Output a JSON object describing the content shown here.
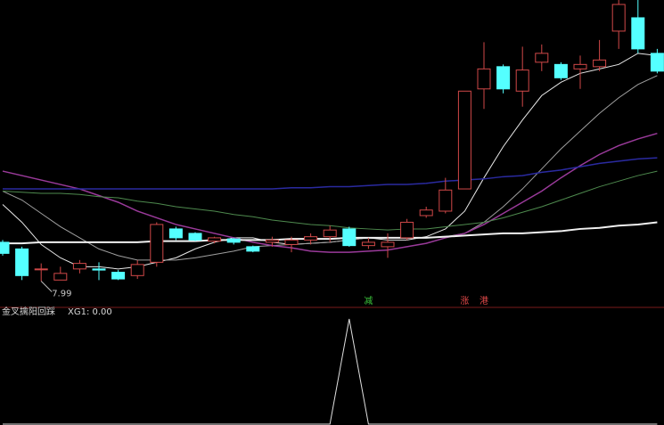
{
  "chart_data": [
    {
      "type": "candlestick",
      "up_color": "#d04848",
      "down_color": "#54ffff",
      "ylim": [
        7.77,
        10.52
      ],
      "open": [
        8.34,
        8.28,
        8.1,
        8.0,
        8.1,
        8.1,
        8.07,
        8.04,
        8.16,
        8.46,
        8.42,
        8.35,
        8.37,
        8.3,
        8.34,
        8.32,
        8.36,
        8.39,
        8.46,
        8.31,
        8.3,
        8.38,
        8.58,
        8.62,
        8.82,
        9.72,
        9.92,
        9.7,
        9.96,
        9.94,
        9.9,
        9.92,
        10.24,
        10.36,
        10.04
      ],
      "high": [
        8.36,
        8.3,
        8.15,
        8.12,
        8.18,
        8.16,
        8.09,
        8.18,
        8.52,
        8.48,
        8.43,
        8.39,
        8.38,
        8.31,
        8.39,
        8.39,
        8.42,
        8.49,
        8.48,
        8.38,
        8.42,
        8.55,
        8.66,
        8.92,
        9.7,
        10.14,
        9.94,
        10.1,
        10.12,
        9.96,
        10.02,
        10.16,
        10.52,
        10.52,
        10.08
      ],
      "low": [
        8.22,
        8.0,
        7.99,
        8.0,
        8.06,
        8.0,
        8.0,
        8.01,
        8.12,
        8.36,
        8.35,
        8.33,
        8.32,
        8.25,
        8.3,
        8.25,
        8.32,
        8.34,
        8.3,
        8.28,
        8.2,
        8.36,
        8.56,
        8.6,
        8.82,
        9.54,
        9.68,
        9.56,
        9.88,
        9.8,
        9.72,
        9.88,
        10.08,
        10.04,
        9.86
      ],
      "close": [
        8.24,
        8.04,
        8.1,
        8.06,
        8.15,
        8.09,
        8.01,
        8.14,
        8.5,
        8.38,
        8.36,
        8.38,
        8.34,
        8.26,
        8.36,
        8.36,
        8.39,
        8.45,
        8.31,
        8.34,
        8.34,
        8.52,
        8.63,
        8.81,
        9.7,
        9.9,
        9.72,
        9.89,
        10.04,
        9.82,
        9.94,
        9.98,
        10.48,
        10.08,
        9.88
      ],
      "series": [
        {
          "color": "#e8e8e8",
          "width": 1,
          "values": [
            8.68,
            8.52,
            8.32,
            8.2,
            8.12,
            8.12,
            8.1,
            8.12,
            8.16,
            8.2,
            8.28,
            8.34,
            8.38,
            8.38,
            8.34,
            8.32,
            8.33,
            8.34,
            8.36,
            8.38,
            8.36,
            8.36,
            8.39,
            8.46,
            8.62,
            8.92,
            9.2,
            9.44,
            9.66,
            9.78,
            9.86,
            9.9,
            9.94,
            10.04,
            10.02
          ]
        },
        {
          "color": "#a0a0a0",
          "width": 1,
          "values": [
            8.8,
            8.72,
            8.6,
            8.48,
            8.38,
            8.28,
            8.22,
            8.18,
            8.18,
            8.18,
            8.2,
            8.23,
            8.26,
            8.3,
            8.31,
            8.32,
            8.33,
            8.34,
            8.36,
            8.38,
            8.38,
            8.38,
            8.38,
            8.39,
            8.42,
            8.52,
            8.66,
            8.82,
            9.0,
            9.18,
            9.34,
            9.5,
            9.64,
            9.76,
            9.84
          ]
        },
        {
          "color": "#9a3a9a",
          "width": 1.5,
          "values": [
            8.98,
            8.94,
            8.9,
            8.86,
            8.82,
            8.76,
            8.7,
            8.62,
            8.56,
            8.5,
            8.46,
            8.42,
            8.38,
            8.34,
            8.31,
            8.29,
            8.26,
            8.25,
            8.25,
            8.26,
            8.27,
            8.3,
            8.33,
            8.38,
            8.42,
            8.5,
            8.6,
            8.7,
            8.8,
            8.92,
            9.03,
            9.13,
            9.21,
            9.27,
            9.32
          ]
        },
        {
          "color": "#4e8a4e",
          "width": 1,
          "values": [
            8.8,
            8.79,
            8.78,
            8.78,
            8.77,
            8.75,
            8.74,
            8.71,
            8.69,
            8.66,
            8.64,
            8.62,
            8.59,
            8.57,
            8.54,
            8.52,
            8.5,
            8.49,
            8.47,
            8.46,
            8.45,
            8.46,
            8.46,
            8.48,
            8.5,
            8.52,
            8.56,
            8.61,
            8.66,
            8.72,
            8.78,
            8.84,
            8.89,
            8.94,
            8.98
          ]
        },
        {
          "color": "#2a2aa0",
          "width": 1.5,
          "values": [
            8.82,
            8.82,
            8.82,
            8.82,
            8.82,
            8.82,
            8.82,
            8.82,
            8.82,
            8.82,
            8.82,
            8.82,
            8.82,
            8.82,
            8.82,
            8.83,
            8.83,
            8.84,
            8.84,
            8.85,
            8.86,
            8.86,
            8.87,
            8.89,
            8.9,
            8.91,
            8.93,
            8.94,
            8.97,
            8.99,
            9.02,
            9.05,
            9.07,
            9.09,
            9.1
          ]
        },
        {
          "color": "#f0f0f0",
          "width": 2,
          "values": [
            8.33,
            8.33,
            8.34,
            8.34,
            8.34,
            8.34,
            8.34,
            8.34,
            8.35,
            8.35,
            8.35,
            8.36,
            8.36,
            8.36,
            8.36,
            8.37,
            8.37,
            8.37,
            8.38,
            8.38,
            8.38,
            8.38,
            8.38,
            8.39,
            8.4,
            8.41,
            8.42,
            8.42,
            8.43,
            8.44,
            8.46,
            8.47,
            8.49,
            8.5,
            8.52
          ]
        }
      ],
      "signals": [
        null,
        null,
        null,
        null,
        null,
        null,
        null,
        null,
        null,
        null,
        null,
        null,
        null,
        null,
        null,
        null,
        null,
        null,
        null,
        {
          "label": "减",
          "color": "#3cc83c"
        },
        null,
        null,
        null,
        null,
        {
          "label": "涨",
          "color": "#e04848"
        },
        {
          "label": "港",
          "color": "#e04848"
        },
        null,
        null,
        null,
        null,
        null,
        null,
        null,
        null,
        null
      ]
    },
    {
      "type": "line",
      "title": "金叉擒阳回踩",
      "legend": "XG1: 0.00",
      "ylim": [
        0,
        1
      ],
      "series": [
        {
          "name": "XG1",
          "color": "#e0e0e0",
          "values": [
            0,
            0,
            0,
            0,
            0,
            0,
            0,
            0,
            0,
            0,
            0,
            0,
            0,
            0,
            0,
            0,
            0,
            0,
            1,
            0,
            0,
            0,
            0,
            0,
            0,
            0,
            0,
            0,
            0,
            0,
            0,
            0,
            0,
            0,
            0
          ]
        }
      ]
    }
  ]
}
